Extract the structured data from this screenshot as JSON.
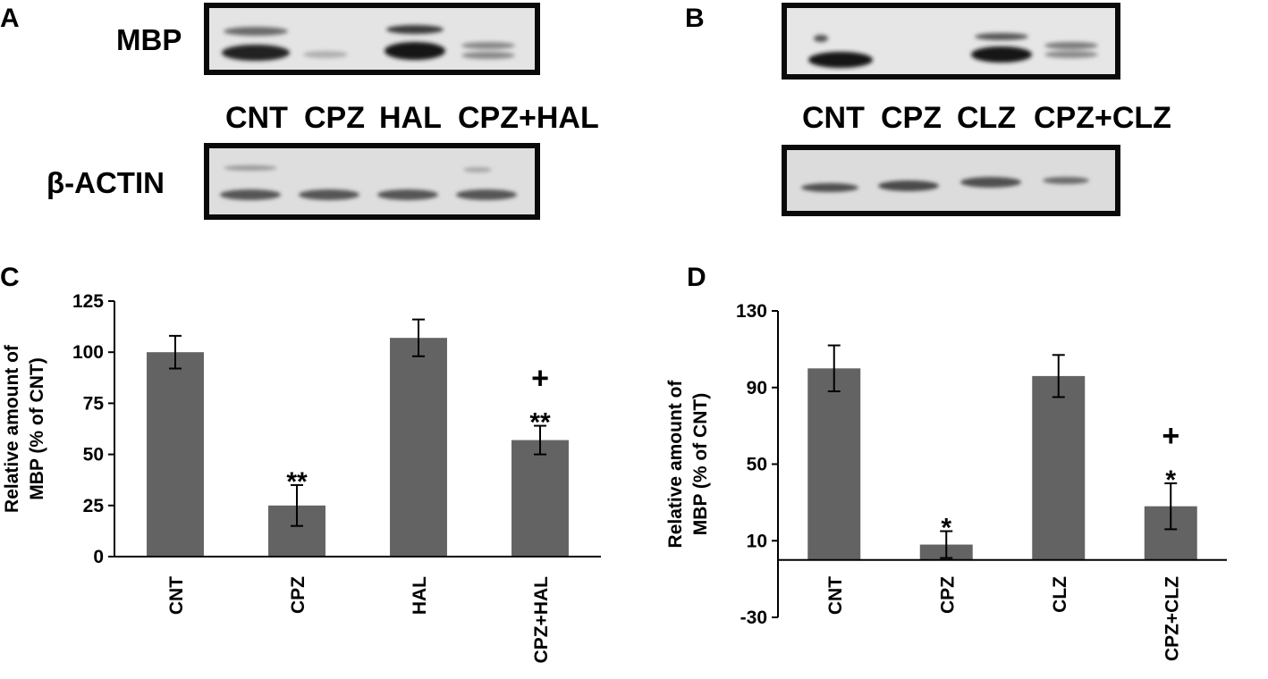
{
  "panels": {
    "a": {
      "letter": "A",
      "blot_label_top": "MBP",
      "blot_label_bottom": "β-ACTIN",
      "lanes": [
        "CNT",
        "CPZ",
        "HAL",
        "CPZ+HAL"
      ]
    },
    "b": {
      "letter": "B",
      "lanes": [
        "CNT",
        "CPZ",
        "CLZ",
        "CPZ+CLZ"
      ]
    },
    "c": {
      "letter": "C"
    },
    "d": {
      "letter": "D"
    }
  },
  "chart_data": [
    {
      "panel": "C",
      "type": "bar",
      "categories": [
        "CNT",
        "CPZ",
        "HAL",
        "CPZ+HAL"
      ],
      "values": [
        100,
        25,
        107,
        57
      ],
      "errors": [
        8,
        10,
        9,
        7
      ],
      "annotations": [
        "",
        "**",
        "",
        "+\n**"
      ],
      "ylabel_line1": "Relative amount of",
      "ylabel_line2": "MBP (% of CNT)",
      "ylim": [
        0,
        125
      ],
      "yticks": [
        "0",
        "25",
        "50",
        "75",
        "100",
        "125"
      ],
      "bar_color": "#636363"
    },
    {
      "panel": "D",
      "type": "bar",
      "categories": [
        "CNT",
        "CPZ",
        "CLZ",
        "CPZ+CLZ"
      ],
      "values": [
        100,
        8,
        96,
        28
      ],
      "errors": [
        12,
        7,
        11,
        12
      ],
      "annotations": [
        "",
        "*",
        "",
        "+\n*"
      ],
      "ylabel_line1": "Relative amount of",
      "ylabel_line2": "MBP (% of CNT)",
      "ylim": [
        -30,
        130
      ],
      "yticks": [
        "-30",
        "10",
        "50",
        "90",
        "130"
      ],
      "bar_color": "#636363"
    }
  ]
}
